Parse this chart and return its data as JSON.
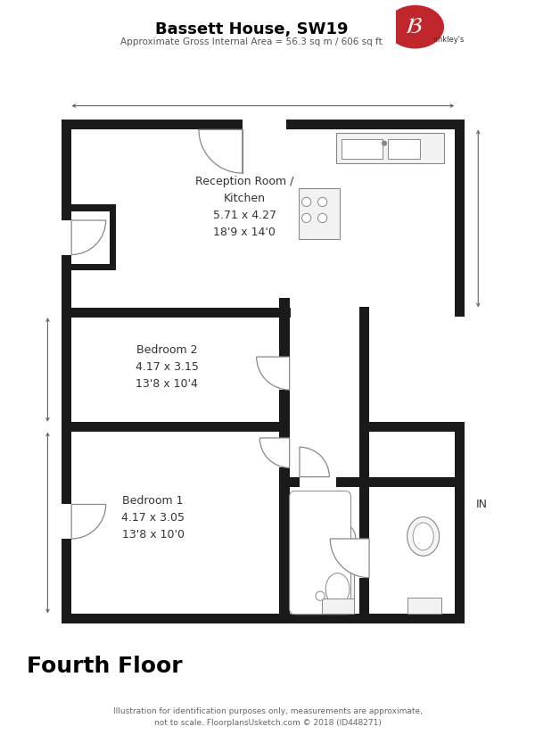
{
  "title": "Bassett House, SW19",
  "subtitle": "Approximate Gross Internal Area = 56.3 sq m / 606 sq ft",
  "footer_main": "Fourth Floor",
  "footer_sub": "Illustration for identification purposes only, measurements are approximate,\nnot to scale. FloorplansUsketch.com © 2018 (ID448271)",
  "bg_color": "#ffffff",
  "wall_color": "#1a1a1a",
  "thin_color": "#888888",
  "room_reception_label": "Reception Room /\nKitchen\n5.71 x 4.27\n18'9 x 14'0",
  "room_bed2_label": "Bedroom 2\n4.17 x 3.15\n13'8 x 10'4",
  "room_bed1_label": "Bedroom 1\n4.17 x 3.05\n13'8 x 10'0",
  "in_label": "IN"
}
